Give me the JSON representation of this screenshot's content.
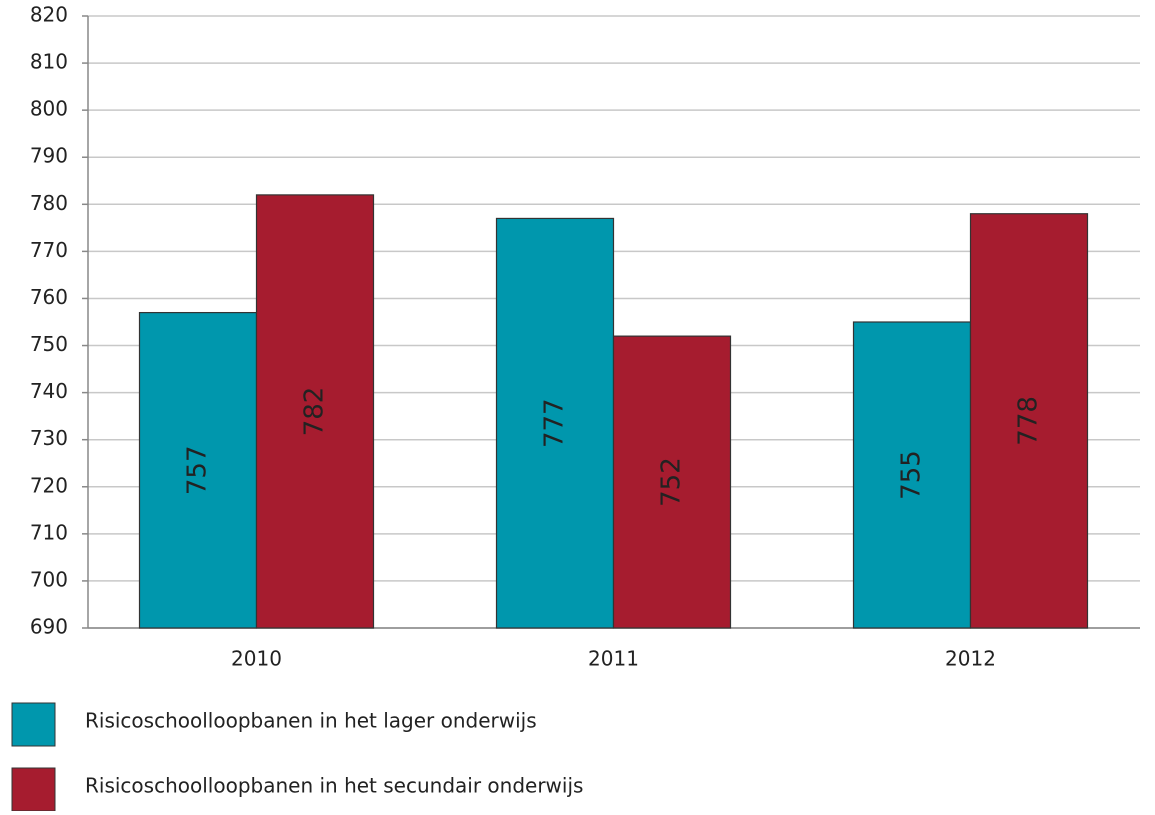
{
  "chart_data": {
    "type": "bar",
    "categories": [
      "2010",
      "2011",
      "2012"
    ],
    "series": [
      {
        "name": "Risicoschoolloopbanen in het lager onderwijs",
        "color": "#0097ad",
        "values": [
          757,
          777,
          755
        ]
      },
      {
        "name": "Risicoschoolloopbanen in het secundair onderwijs",
        "color": "#a61c2f",
        "values": [
          782,
          752,
          778
        ]
      }
    ],
    "ylim": [
      690,
      820
    ],
    "yticks": [
      690,
      700,
      710,
      720,
      730,
      740,
      750,
      760,
      770,
      780,
      790,
      800,
      810,
      820
    ],
    "grid": true,
    "legend": "bottom"
  }
}
